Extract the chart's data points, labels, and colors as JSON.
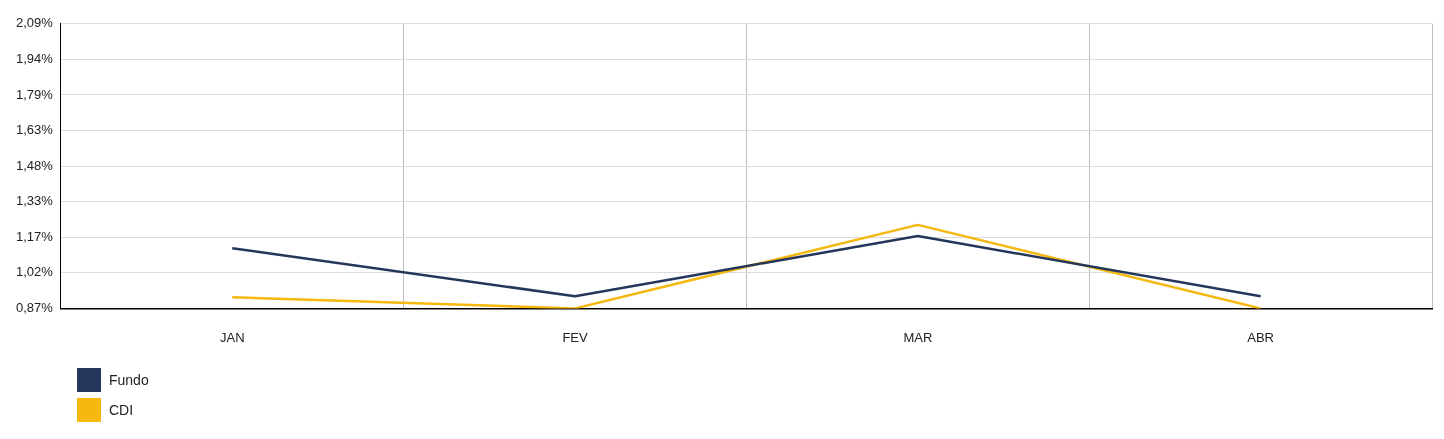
{
  "chart_data": {
    "type": "line",
    "categories": [
      "JAN",
      "FEV",
      "MAR",
      "ABR"
    ],
    "series": [
      {
        "name": "Fundo",
        "color": "#243659",
        "values": [
          1.128,
          0.922,
          1.18,
          0.922
        ]
      },
      {
        "name": "CDI",
        "color": "#f5b80f",
        "values": [
          0.918,
          0.87,
          1.228,
          0.87
        ]
      }
    ],
    "ylim": [
      0.87,
      2.09
    ],
    "yticks": [
      {
        "value": 0.87,
        "label": "0,87%"
      },
      {
        "value": 1.0225,
        "label": "1,02%"
      },
      {
        "value": 1.175,
        "label": "1,17%"
      },
      {
        "value": 1.3275,
        "label": "1,33%"
      },
      {
        "value": 1.48,
        "label": "1,48%"
      },
      {
        "value": 1.6325,
        "label": "1,63%"
      },
      {
        "value": 1.785,
        "label": "1,79%"
      },
      {
        "value": 1.9375,
        "label": "1,94%"
      },
      {
        "value": 2.09,
        "label": "2,09%"
      }
    ],
    "grid": true,
    "legend": "bottom left",
    "marker": "none",
    "line_style": "solid"
  }
}
